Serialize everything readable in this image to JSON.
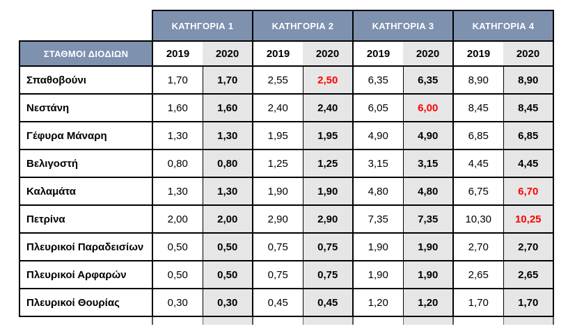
{
  "chart_data": {
    "type": "table",
    "corner_header": "ΣΤΑΘΜΟΙ ΔΙΟΔΙΩΝ",
    "column_groups": [
      "ΚΑΤΗΓΟΡΙΑ 1",
      "ΚΑΤΗΓΟΡΙΑ 2",
      "ΚΑΤΗΓΟΡΙΑ 3",
      "ΚΑΤΗΓΟΡΙΑ 4"
    ],
    "sub_columns": [
      "2019",
      "2020"
    ],
    "rows": [
      {
        "station": "Σπαθοβούνι",
        "values": [
          "1,70",
          "1,70",
          "2,55",
          "2,50",
          "6,35",
          "6,35",
          "8,90",
          "8,90"
        ],
        "red_indices": [
          3
        ]
      },
      {
        "station": "Νεστάνη",
        "values": [
          "1,60",
          "1,60",
          "2,40",
          "2,40",
          "6,05",
          "6,00",
          "8,45",
          "8,45"
        ],
        "red_indices": [
          5
        ]
      },
      {
        "station": "Γέφυρα Μάναρη",
        "values": [
          "1,30",
          "1,30",
          "1,95",
          "1,95",
          "4,90",
          "4,90",
          "6,85",
          "6,85"
        ],
        "red_indices": []
      },
      {
        "station": "Βελιγοστή",
        "values": [
          "0,80",
          "0,80",
          "1,25",
          "1,25",
          "3,15",
          "3,15",
          "4,45",
          "4,45"
        ],
        "red_indices": []
      },
      {
        "station": "Καλαμάτα",
        "values": [
          "1,30",
          "1,30",
          "1,90",
          "1,90",
          "4,80",
          "4,80",
          "6,75",
          "6,70"
        ],
        "red_indices": [
          7
        ]
      },
      {
        "station": "Πετρίνα",
        "values": [
          "2,00",
          "2,00",
          "2,90",
          "2,90",
          "7,35",
          "7,35",
          "10,30",
          "10,25"
        ],
        "red_indices": [
          7
        ]
      },
      {
        "station": "Πλευρικοί Παραδεισίων",
        "values": [
          "0,50",
          "0,50",
          "0,75",
          "0,75",
          "1,90",
          "1,90",
          "2,70",
          "2,70"
        ],
        "red_indices": []
      },
      {
        "station": "Πλευρικοί Αρφαρών",
        "values": [
          "0,50",
          "0,50",
          "0,75",
          "0,75",
          "1,90",
          "1,90",
          "2,65",
          "2,65"
        ],
        "red_indices": []
      },
      {
        "station": "Πλευρικοί Θουρίας",
        "values": [
          "0,30",
          "0,30",
          "0,45",
          "0,45",
          "1,20",
          "1,20",
          "1,70",
          "1,70"
        ],
        "red_indices": []
      }
    ]
  },
  "colors": {
    "header_bg": "#7E91AF",
    "header_text": "#FFFFFF",
    "shaded_column_bg": "#E7E6E6",
    "highlight_text": "#FF0000",
    "border": "#000000"
  }
}
